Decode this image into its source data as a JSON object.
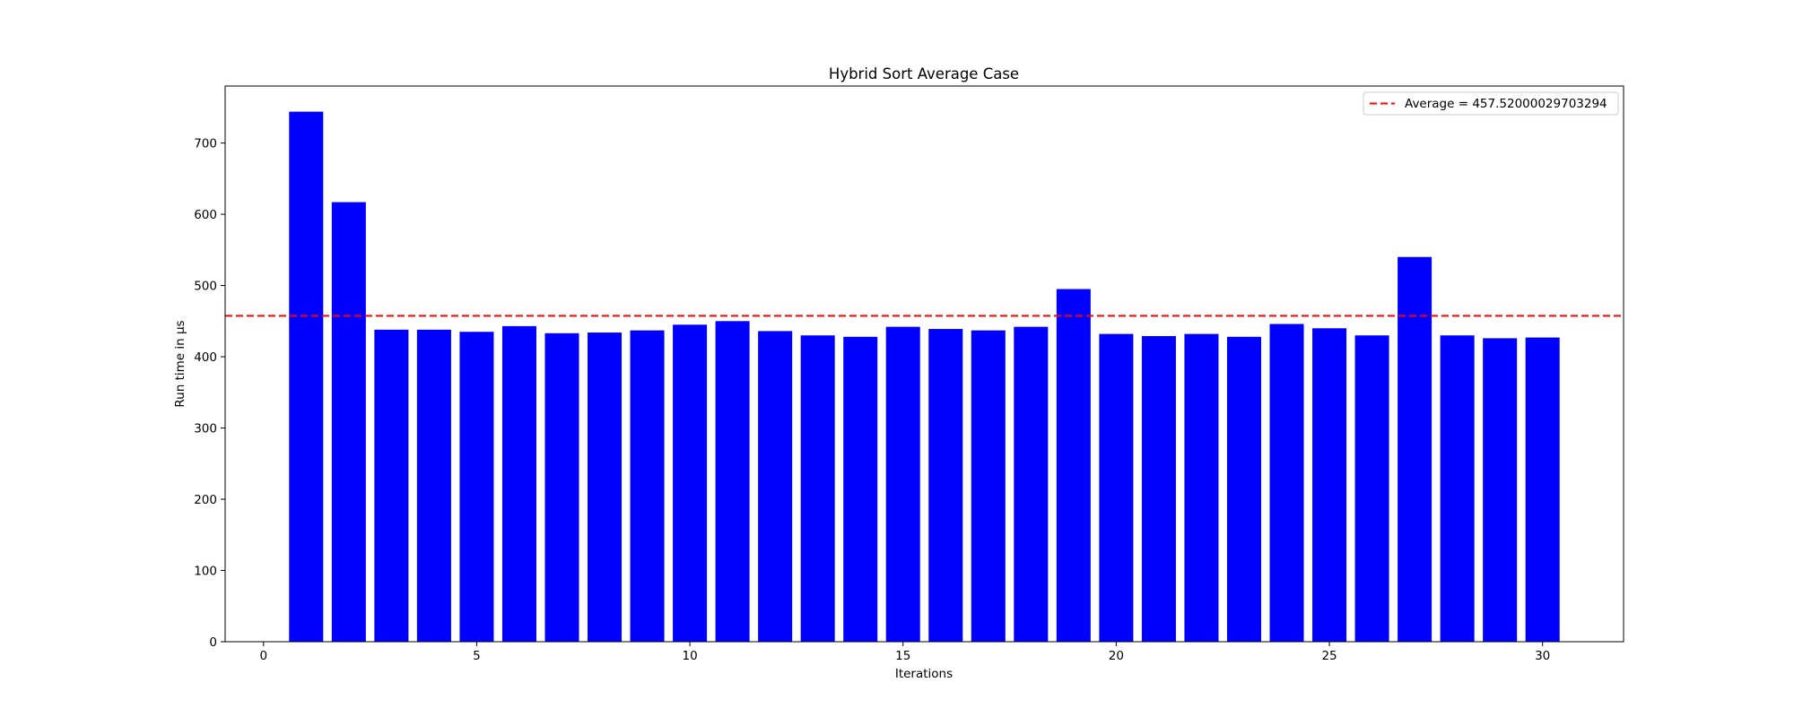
{
  "colors": {
    "bar": "#0000ff",
    "average_line": "#ff0000",
    "axis": "#000000",
    "background": "#ffffff"
  },
  "chart_data": {
    "type": "bar",
    "title": "Hybrid Sort Average Case",
    "xlabel": "Iterations",
    "ylabel": "Run time in µs",
    "x": [
      1,
      2,
      3,
      4,
      5,
      6,
      7,
      8,
      9,
      10,
      11,
      12,
      13,
      14,
      15,
      16,
      17,
      18,
      19,
      20,
      21,
      22,
      23,
      24,
      25,
      26,
      27,
      28,
      29,
      30
    ],
    "values": [
      744,
      617,
      438,
      438,
      435,
      443,
      433,
      434,
      437,
      445,
      450,
      436,
      430,
      428,
      442,
      439,
      437,
      442,
      495,
      432,
      429,
      432,
      428,
      446,
      440,
      430,
      540,
      430,
      426,
      427
    ],
    "xlim": [
      -0.9,
      31.9
    ],
    "ylim": [
      0,
      780
    ],
    "xticks": [
      0,
      5,
      10,
      15,
      20,
      25,
      30
    ],
    "xtick_labels": [
      "0",
      "5",
      "10",
      "15",
      "20",
      "25",
      "30"
    ],
    "yticks": [
      0,
      100,
      200,
      300,
      400,
      500,
      600,
      700
    ],
    "ytick_labels": [
      "0",
      "100",
      "200",
      "300",
      "400",
      "500",
      "600",
      "700"
    ],
    "average": 457.52000029703294,
    "legend": {
      "label": "Average = 457.52000029703294",
      "placement": "upper-right"
    },
    "grid": false
  }
}
